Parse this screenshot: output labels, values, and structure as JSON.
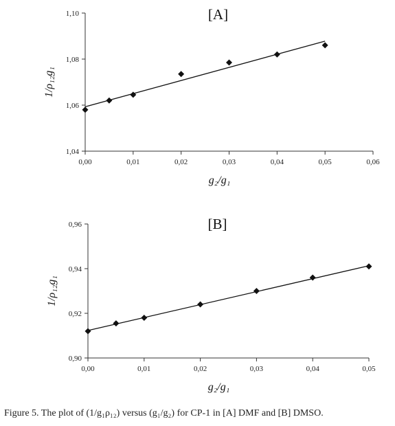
{
  "caption": "Figure 5. The plot of (1/g₁ρ₁₂) versus (g₁/g₂) for CP-1 in [A] DMF and [B] DMSO.",
  "chart_data": [
    {
      "type": "scatter",
      "title": "[A]",
      "xlabel": "g₂/g₁",
      "ylabel": "1/ρ₁₂g₁",
      "xlim": [
        0,
        0.06
      ],
      "ylim": [
        1.04,
        1.1
      ],
      "xticks": [
        "0,00",
        "0,01",
        "0,02",
        "0,03",
        "0,04",
        "0,05",
        "0,06"
      ],
      "yticks": [
        "1,04",
        "1,06",
        "1,08",
        "1,10"
      ],
      "x": [
        0.0,
        0.005,
        0.01,
        0.02,
        0.03,
        0.04,
        0.05
      ],
      "y": [
        1.058,
        1.062,
        1.0645,
        1.0735,
        1.0785,
        1.082,
        1.086
      ],
      "trendline": {
        "x": [
          0.0,
          0.05
        ],
        "y": [
          1.0593,
          1.0878
        ]
      },
      "grid": false,
      "legend": "none"
    },
    {
      "type": "scatter",
      "title": "[B]",
      "xlabel": "g₂/g₁",
      "ylabel": "1/ρ₁₂g₁",
      "xlim": [
        0,
        0.05
      ],
      "ylim": [
        0.9,
        0.96
      ],
      "xticks": [
        "0,00",
        "0,01",
        "0,02",
        "0,03",
        "0,04",
        "0,05"
      ],
      "yticks": [
        "0,90",
        "0,92",
        "0,94",
        "0,96"
      ],
      "x": [
        0.0,
        0.005,
        0.01,
        0.02,
        0.03,
        0.04,
        0.05
      ],
      "y": [
        0.912,
        0.9155,
        0.918,
        0.924,
        0.93,
        0.936,
        0.941
      ],
      "trendline": {
        "x": [
          0.0,
          0.05
        ],
        "y": [
          0.9123,
          0.9413
        ]
      },
      "grid": false,
      "legend": "none"
    }
  ]
}
